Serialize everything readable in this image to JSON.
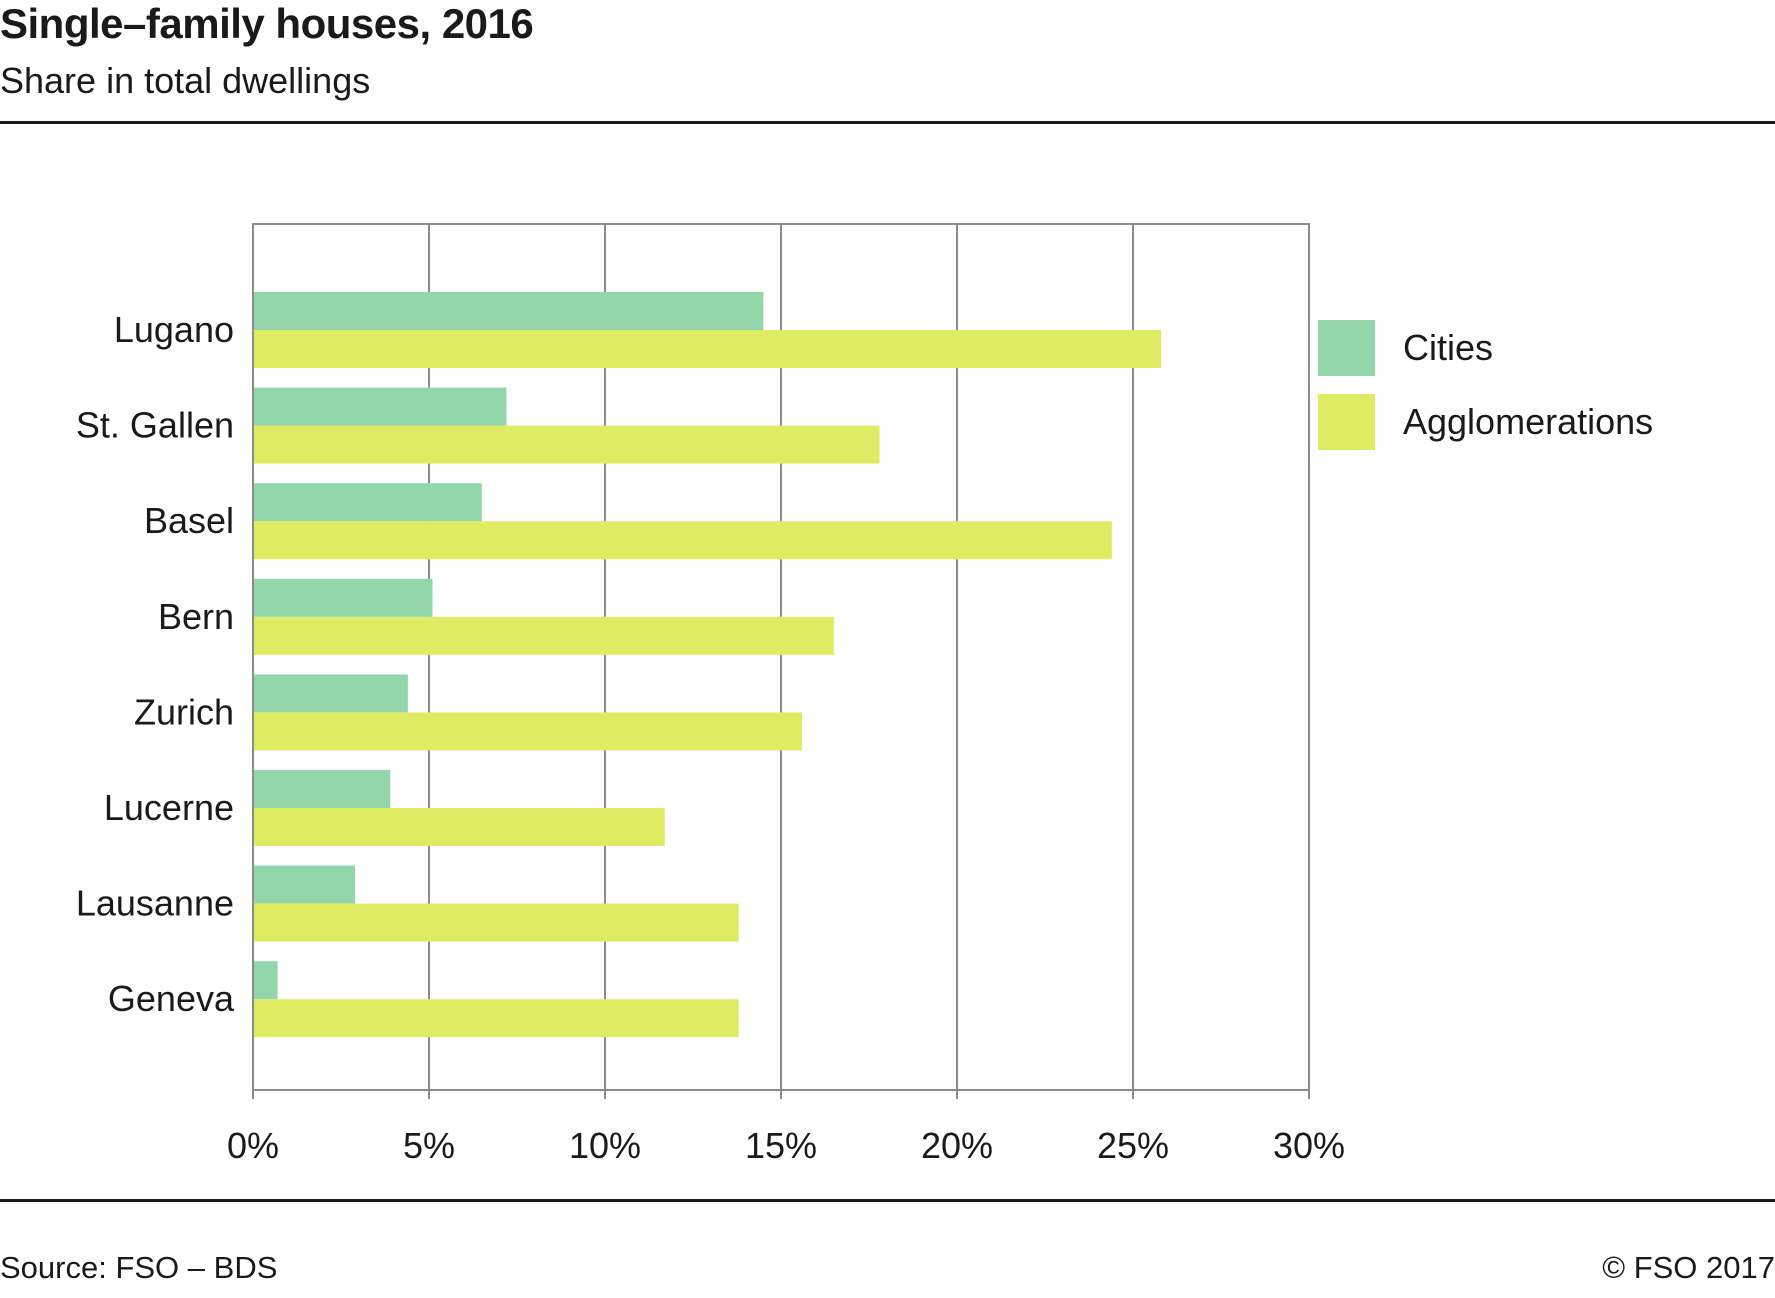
{
  "header": {
    "title": "Single–family houses, 2016",
    "subtitle": "Share in total dwellings"
  },
  "footer": {
    "source": "Source: FSO – BDS",
    "copyright": "© FSO 2017"
  },
  "colors": {
    "cities": "#93d6aa",
    "agglomerations": "#e0eb64",
    "grid": "#8c8c8c",
    "text": "#1a1a1a"
  },
  "chart_data": {
    "type": "bar",
    "orientation": "horizontal",
    "title": "Single–family houses, 2016",
    "subtitle": "Share in total dwellings",
    "categories": [
      "Lugano",
      "St. Gallen",
      "Basel",
      "Bern",
      "Zurich",
      "Lucerne",
      "Lausanne",
      "Geneva"
    ],
    "series": [
      {
        "name": "Cities",
        "values": [
          14.5,
          7.2,
          6.5,
          5.1,
          4.4,
          3.9,
          2.9,
          0.7
        ]
      },
      {
        "name": "Agglomerations",
        "values": [
          25.8,
          17.8,
          24.4,
          16.5,
          15.6,
          11.7,
          13.8,
          13.8
        ]
      }
    ],
    "xlim": [
      0,
      30
    ],
    "xticks": [
      0,
      5,
      10,
      15,
      20,
      25,
      30
    ],
    "xtick_labels": [
      "0%",
      "5%",
      "10%",
      "15%",
      "20%",
      "25%",
      "30%"
    ],
    "grid": true,
    "legend_position": "right"
  }
}
